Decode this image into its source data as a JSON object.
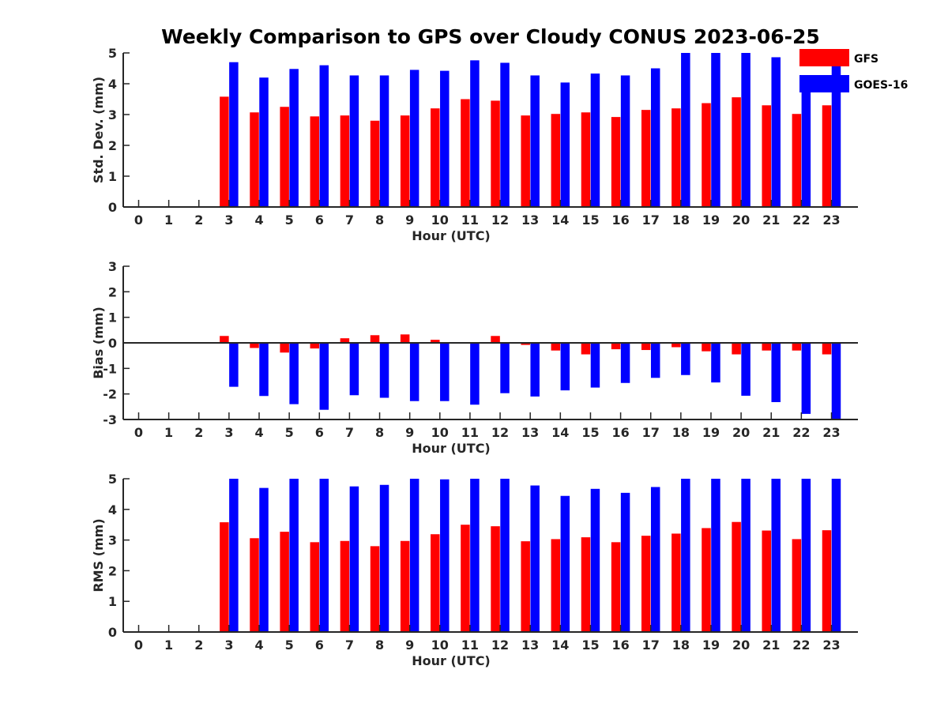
{
  "chart_data": {
    "title": "Weekly Comparison to GPS over Cloudy CONUS 2023-06-25",
    "legend": {
      "placement": "top-right",
      "entries": [
        {
          "name": "GFS",
          "color": "#ff0000"
        },
        {
          "name": "GOES-16",
          "color": "#0000ff"
        }
      ]
    },
    "panels": [
      {
        "type": "bar",
        "xlabel": "Hour (UTC)",
        "ylabel": "Std. Dev. (mm)",
        "ylim": [
          0,
          5
        ],
        "yticks": [
          0,
          1,
          2,
          3,
          4,
          5
        ],
        "categories": [
          "0",
          "1",
          "2",
          "3",
          "4",
          "5",
          "6",
          "7",
          "8",
          "9",
          "10",
          "11",
          "12",
          "13",
          "14",
          "15",
          "16",
          "17",
          "18",
          "19",
          "20",
          "21",
          "22",
          "23"
        ],
        "series": [
          {
            "name": "GFS",
            "color": "#ff0000",
            "values": [
              null,
              null,
              null,
              3.58,
              3.07,
              3.25,
              2.94,
              2.97,
              2.8,
              2.97,
              3.2,
              3.5,
              3.45,
              2.97,
              3.02,
              3.07,
              2.92,
              3.15,
              3.2,
              3.37,
              3.56,
              3.3,
              3.02,
              3.3
            ]
          },
          {
            "name": "GOES-16",
            "color": "#0000ff",
            "values": [
              null,
              null,
              null,
              4.7,
              4.2,
              4.48,
              4.6,
              4.27,
              4.27,
              4.45,
              4.42,
              4.76,
              4.68,
              4.27,
              4.04,
              4.33,
              4.27,
              4.5,
              5.0,
              5.0,
              5.0,
              4.86,
              4.17,
              5.0
            ]
          }
        ]
      },
      {
        "type": "bar",
        "xlabel": "Hour (UTC)",
        "ylabel": "Bias (mm)",
        "ylim": [
          -3,
          3
        ],
        "yticks": [
          -3,
          -2,
          -1,
          0,
          1,
          2,
          3
        ],
        "categories": [
          "0",
          "1",
          "2",
          "3",
          "4",
          "5",
          "6",
          "7",
          "8",
          "9",
          "10",
          "11",
          "12",
          "13",
          "14",
          "15",
          "16",
          "17",
          "18",
          "19",
          "20",
          "21",
          "22",
          "23"
        ],
        "series": [
          {
            "name": "GFS",
            "color": "#ff0000",
            "values": [
              null,
              null,
              null,
              0.27,
              -0.2,
              -0.38,
              -0.22,
              0.18,
              0.3,
              0.33,
              0.12,
              -0.03,
              0.27,
              -0.08,
              -0.3,
              -0.45,
              -0.25,
              -0.28,
              -0.17,
              -0.33,
              -0.45,
              -0.3,
              -0.3,
              -0.45
            ]
          },
          {
            "name": "GOES-16",
            "color": "#0000ff",
            "values": [
              null,
              null,
              null,
              -1.72,
              -2.08,
              -2.4,
              -2.62,
              -2.05,
              -2.15,
              -2.28,
              -2.28,
              -2.42,
              -1.97,
              -2.1,
              -1.86,
              -1.75,
              -1.57,
              -1.37,
              -1.26,
              -1.55,
              -2.07,
              -2.32,
              -2.78,
              -3.0
            ]
          }
        ]
      },
      {
        "type": "bar",
        "xlabel": "Hour (UTC)",
        "ylabel": "RMS (mm)",
        "ylim": [
          0,
          5
        ],
        "yticks": [
          0,
          1,
          2,
          3,
          4,
          5
        ],
        "categories": [
          "0",
          "1",
          "2",
          "3",
          "4",
          "5",
          "6",
          "7",
          "8",
          "9",
          "10",
          "11",
          "12",
          "13",
          "14",
          "15",
          "16",
          "17",
          "18",
          "19",
          "20",
          "21",
          "22",
          "23"
        ],
        "series": [
          {
            "name": "GFS",
            "color": "#ff0000",
            "values": [
              null,
              null,
              null,
              3.58,
              3.06,
              3.27,
              2.93,
              2.97,
              2.8,
              2.97,
              3.19,
              3.5,
              3.45,
              2.96,
              3.03,
              3.09,
              2.93,
              3.14,
              3.21,
              3.39,
              3.59,
              3.31,
              3.03,
              3.32
            ]
          },
          {
            "name": "GOES-16",
            "color": "#0000ff",
            "values": [
              null,
              null,
              null,
              5.0,
              4.7,
              5.0,
              5.0,
              4.75,
              4.8,
              5.0,
              4.98,
              5.0,
              5.0,
              4.78,
              4.44,
              4.67,
              4.54,
              4.73,
              5.0,
              5.0,
              5.0,
              5.0,
              5.0,
              5.0
            ]
          }
        ]
      }
    ]
  }
}
